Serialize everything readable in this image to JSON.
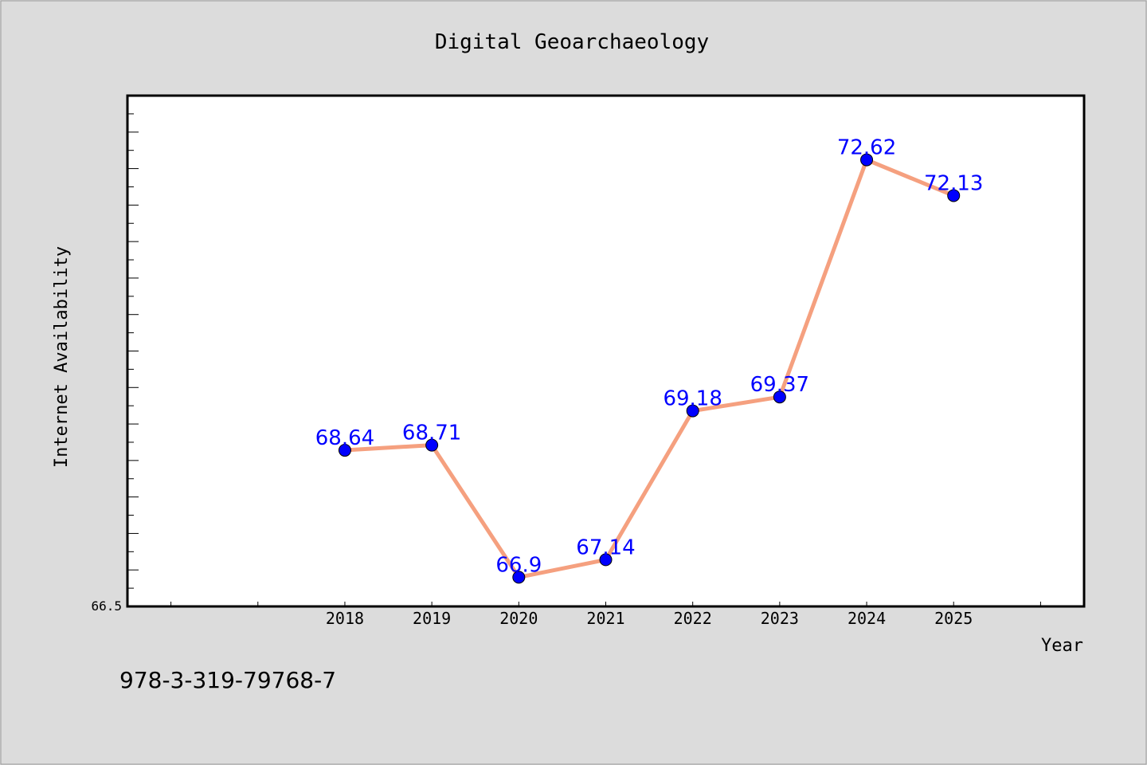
{
  "footer_code": "978-3-319-79768-7",
  "chart_data": {
    "type": "line",
    "title": "Digital Geoarchaeology",
    "xlabel": "Year",
    "ylabel": "Internet Availability",
    "categories": [
      "2018",
      "2019",
      "2020",
      "2021",
      "2022",
      "2023",
      "2024",
      "2025"
    ],
    "x_range": [
      2015.5,
      2026.5
    ],
    "ylim": [
      66.5,
      73.5
    ],
    "y_tick_label": "66.5",
    "series": [
      {
        "values": [
          68.64,
          68.71,
          66.9,
          67.14,
          69.18,
          69.37,
          72.62,
          72.13
        ],
        "labels": [
          "68.64",
          "68.71",
          "66.9",
          "67.14",
          "69.18",
          "69.37",
          "72.62",
          "72.13"
        ]
      }
    ],
    "line_color": "#f5a07f",
    "marker_color": "#0000ff",
    "label_color": "#0000ff",
    "grid": false,
    "legend": "none"
  }
}
